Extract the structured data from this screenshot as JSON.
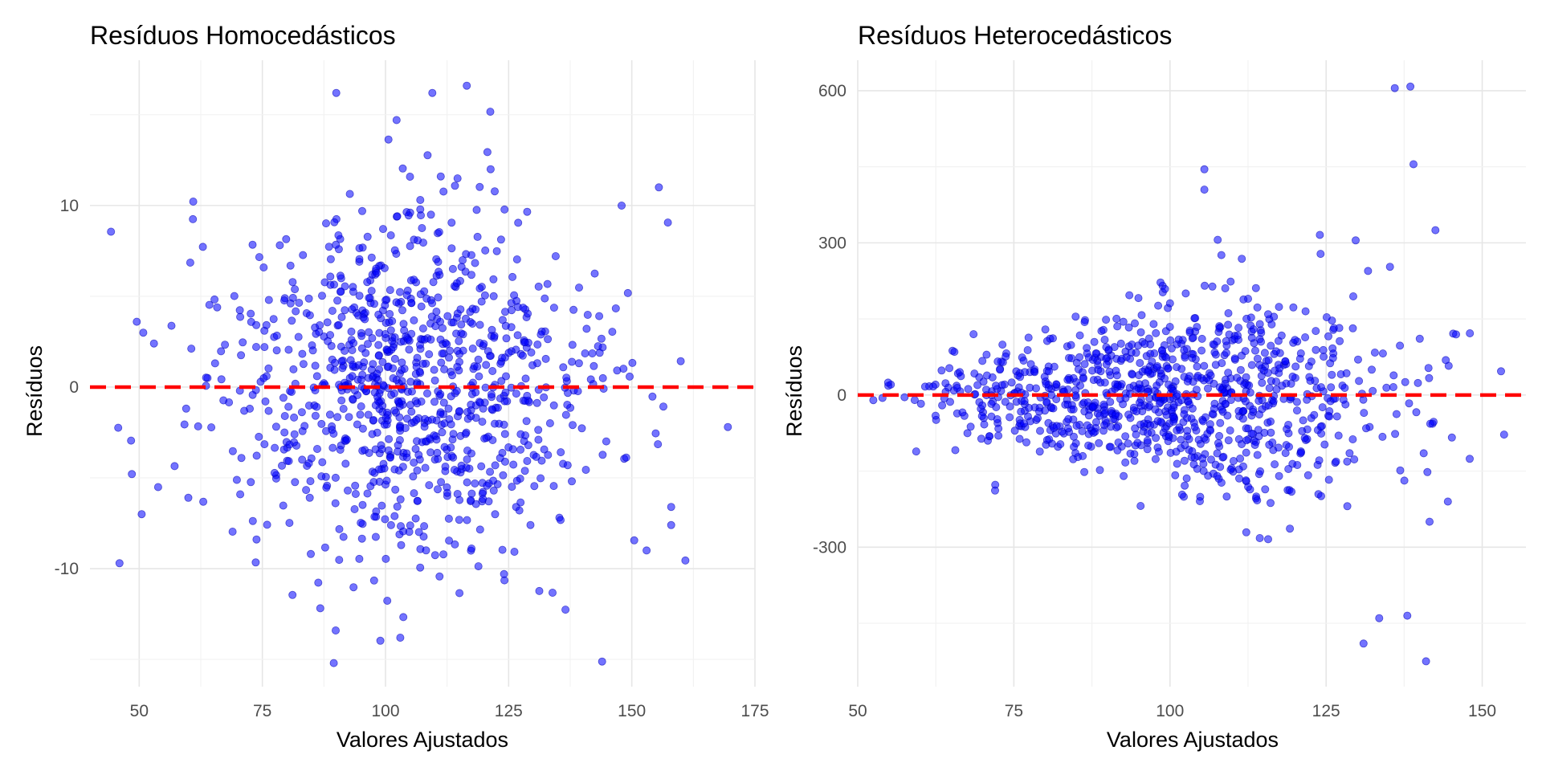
{
  "chart_data": [
    {
      "type": "scatter",
      "title": "Resíduos Homocedásticos",
      "xlabel": "Valores Ajustados",
      "ylabel": "Resíduos",
      "xlim": [
        40,
        175
      ],
      "ylim": [
        -16.5,
        18
      ],
      "xticks": [
        50,
        75,
        100,
        125,
        150,
        175
      ],
      "xtick_labels": [
        "50",
        "75",
        "100",
        "125",
        "150",
        "175"
      ],
      "yticks": [
        -10,
        0,
        10
      ],
      "ytick_labels": [
        "-10",
        "0",
        "10"
      ],
      "hline": 0,
      "grid": true,
      "point_color": "#0000ff",
      "line_color": "#ff0000",
      "n_points": 1000,
      "x_mean": 104.5,
      "x_sd": 19.5,
      "resid_sd": 5.0,
      "notable_points": [
        {
          "x": 46,
          "y": -9.7
        },
        {
          "x": 49.5,
          "y": 3.6
        },
        {
          "x": 50.5,
          "y": -7.0
        },
        {
          "x": 53,
          "y": 2.4
        },
        {
          "x": 90,
          "y": 16.2
        },
        {
          "x": 109.5,
          "y": 16.2
        },
        {
          "x": 116.5,
          "y": 16.6
        },
        {
          "x": 89.5,
          "y": -15.2
        },
        {
          "x": 103,
          "y": -13.8
        },
        {
          "x": 169.5,
          "y": -2.2
        },
        {
          "x": 155.5,
          "y": 11.0
        },
        {
          "x": 158,
          "y": -6.6
        },
        {
          "x": 158,
          "y": -7.6
        },
        {
          "x": 153,
          "y": -9.0
        }
      ]
    },
    {
      "type": "scatter",
      "title": "Resíduos Heterocedásticos",
      "xlabel": "Valores Ajustados",
      "ylabel": "Resíduos",
      "xlim": [
        50,
        157
      ],
      "ylim": [
        -575,
        660
      ],
      "xticks": [
        50,
        75,
        100,
        125,
        150
      ],
      "xtick_labels": [
        "50",
        "75",
        "100",
        "125",
        "150"
      ],
      "yticks": [
        -300,
        0,
        300,
        600
      ],
      "ytick_labels": [
        "-300",
        "0",
        "300",
        "600"
      ],
      "hline": 0,
      "grid": true,
      "point_color": "#0000ff",
      "line_color": "#ff0000",
      "n_points": 1000,
      "x_mean": 99.5,
      "x_sd": 19.0,
      "resid_scale_per_x": 1.05,
      "notable_points": [
        {
          "x": 136,
          "y": 605
        },
        {
          "x": 138.5,
          "y": 608
        },
        {
          "x": 139,
          "y": 455
        },
        {
          "x": 142.5,
          "y": 325
        },
        {
          "x": 141,
          "y": -525
        },
        {
          "x": 131,
          "y": -490
        },
        {
          "x": 133.5,
          "y": -440
        },
        {
          "x": 138,
          "y": -435
        },
        {
          "x": 153.5,
          "y": -78
        },
        {
          "x": 144.5,
          "y": -210
        },
        {
          "x": 52.5,
          "y": -10
        },
        {
          "x": 105.5,
          "y": 445
        },
        {
          "x": 105.5,
          "y": 405
        }
      ]
    }
  ]
}
